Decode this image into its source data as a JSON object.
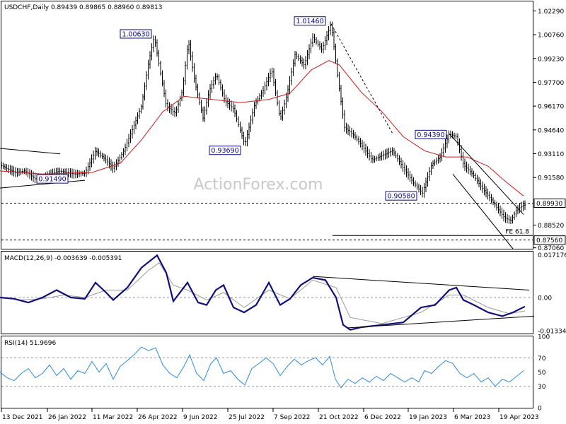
{
  "chart_data": [
    {
      "type": "candlestick",
      "title": "USDCHF,Daily",
      "ohlc_text": "0.89439 0.89865 0.88960 0.89813",
      "watermark": "ActionForex.com",
      "ylim": [
        0.87,
        1.029
      ],
      "y_ticks": [
        "1.02290",
        "1.00760",
        "0.99230",
        "0.97700",
        "0.96170",
        "0.94640",
        "0.93110",
        "0.91580",
        "0.88520",
        "0.87060"
      ],
      "y_tick_values": [
        1.0229,
        1.0076,
        0.9923,
        0.977,
        0.9617,
        0.9464,
        0.9311,
        0.9158,
        0.8852,
        0.8706
      ],
      "x_ticks": [
        "13 Dec 2021",
        "26 Jan 2022",
        "11 Mar 2022",
        "26 Apr 2022",
        "9 Jun 2022",
        "25 Jul 2022",
        "7 Sep 2022",
        "21 Oct 2022",
        "6 Dec 2022",
        "19 Jan 2023",
        "6 Mar 2023",
        "19 Apr 2023"
      ],
      "price_path": [
        [
          0,
          0.924
        ],
        [
          10,
          0.9215
        ],
        [
          22,
          0.919
        ],
        [
          35,
          0.92
        ],
        [
          50,
          0.9149
        ],
        [
          65,
          0.917
        ],
        [
          85,
          0.92
        ],
        [
          105,
          0.918
        ],
        [
          120,
          0.9185
        ],
        [
          135,
          0.933
        ],
        [
          150,
          0.927
        ],
        [
          160,
          0.9215
        ],
        [
          175,
          0.933
        ],
        [
          190,
          0.95
        ],
        [
          200,
          0.962
        ],
        [
          210,
          0.99
        ],
        [
          218,
          1.0063
        ],
        [
          225,
          0.988
        ],
        [
          235,
          0.962
        ],
        [
          248,
          0.957
        ],
        [
          258,
          0.972
        ],
        [
          266,
          1.004
        ],
        [
          275,
          0.978
        ],
        [
          287,
          0.954
        ],
        [
          296,
          0.972
        ],
        [
          306,
          0.982
        ],
        [
          318,
          0.965
        ],
        [
          330,
          0.96
        ],
        [
          346,
          0.9369
        ],
        [
          360,
          0.963
        ],
        [
          372,
          0.972
        ],
        [
          384,
          0.985
        ],
        [
          396,
          0.953
        ],
        [
          406,
          0.97
        ],
        [
          417,
          0.995
        ],
        [
          430,
          0.988
        ],
        [
          442,
          1.006
        ],
        [
          455,
          0.998
        ],
        [
          468,
          1.0146
        ],
        [
          478,
          0.978
        ],
        [
          487,
          0.948
        ],
        [
          500,
          0.943
        ],
        [
          512,
          0.936
        ],
        [
          526,
          0.927
        ],
        [
          540,
          0.93
        ],
        [
          555,
          0.933
        ],
        [
          570,
          0.922
        ],
        [
          585,
          0.912
        ],
        [
          597,
          0.9058
        ],
        [
          610,
          0.924
        ],
        [
          622,
          0.929
        ],
        [
          635,
          0.9439
        ],
        [
          645,
          0.942
        ],
        [
          655,
          0.924
        ],
        [
          668,
          0.918
        ],
        [
          680,
          0.91
        ],
        [
          692,
          0.903
        ],
        [
          703,
          0.896
        ],
        [
          713,
          0.89
        ],
        [
          722,
          0.888
        ],
        [
          730,
          0.895
        ],
        [
          740,
          0.8981
        ]
      ],
      "ma_path": [
        [
          0,
          0.92
        ],
        [
          60,
          0.918
        ],
        [
          130,
          0.919
        ],
        [
          170,
          0.925
        ],
        [
          200,
          0.94
        ],
        [
          230,
          0.958
        ],
        [
          260,
          0.968
        ],
        [
          300,
          0.966
        ],
        [
          340,
          0.964
        ],
        [
          380,
          0.966
        ],
        [
          410,
          0.97
        ],
        [
          440,
          0.985
        ],
        [
          465,
          0.991
        ],
        [
          480,
          0.988
        ],
        [
          510,
          0.971
        ],
        [
          540,
          0.958
        ],
        [
          570,
          0.942
        ],
        [
          600,
          0.933
        ],
        [
          630,
          0.929
        ],
        [
          660,
          0.929
        ],
        [
          690,
          0.923
        ],
        [
          715,
          0.913
        ],
        [
          740,
          0.904
        ]
      ],
      "price_line": 0.8993,
      "price_line_label": "0.89930",
      "support_line": 0.8756,
      "support_line_label": "0.87560",
      "fe_label": "FE 61.8",
      "annotations": [
        {
          "label": "1.00630",
          "x": 218,
          "value": 1.0063
        },
        {
          "label": "1.01460",
          "x": 468,
          "value": 1.0146
        },
        {
          "label": "0.93690",
          "x": 346,
          "value": 0.9369
        },
        {
          "label": "0.94390",
          "x": 635,
          "value": 0.9439
        },
        {
          "label": "0.90580",
          "x": 597,
          "value": 0.9058
        },
        {
          "label": "0.91490",
          "x": 50,
          "value": 0.9149
        }
      ],
      "trend_lines": [
        {
          "from": [
            0,
            0.9345
          ],
          "to": [
            85,
            0.931
          ],
          "style": "solid"
        },
        {
          "from": [
            0,
            0.909
          ],
          "to": [
            120,
            0.914
          ],
          "style": "solid"
        },
        {
          "from": [
            468,
            1.0146
          ],
          "to": [
            555,
            0.944
          ],
          "style": "dashed"
        },
        {
          "from": [
            635,
            0.9439
          ],
          "to": [
            740,
            0.892
          ],
          "style": "solid"
        },
        {
          "from": [
            640,
            0.918
          ],
          "to": [
            725,
            0.87
          ],
          "style": "solid"
        }
      ]
    },
    {
      "type": "line",
      "title": "MACD(12,26,9)",
      "values_text": "-0.003639 -0.005391",
      "ylim": [
        -0.0145,
        0.0185
      ],
      "y_ticks": [
        "0.017176",
        "0.00",
        "-0.01334"
      ],
      "y_tick_values": [
        0.017176,
        0.0,
        -0.01334
      ],
      "macd_path": [
        [
          0,
          0.0
        ],
        [
          20,
          -0.0005
        ],
        [
          40,
          -0.002
        ],
        [
          60,
          0.0
        ],
        [
          80,
          0.003
        ],
        [
          100,
          0.0
        ],
        [
          120,
          -0.0005
        ],
        [
          135,
          0.006
        ],
        [
          150,
          0.002
        ],
        [
          160,
          -0.001
        ],
        [
          180,
          0.004
        ],
        [
          200,
          0.012
        ],
        [
          222,
          0.017
        ],
        [
          235,
          0.01
        ],
        [
          245,
          -0.0015
        ],
        [
          265,
          0.006
        ],
        [
          280,
          -0.002
        ],
        [
          292,
          -0.003
        ],
        [
          305,
          0.003
        ],
        [
          316,
          0.005
        ],
        [
          330,
          -0.004
        ],
        [
          345,
          -0.006
        ],
        [
          362,
          -0.003
        ],
        [
          380,
          0.006
        ],
        [
          396,
          -0.003
        ],
        [
          410,
          -0.0005
        ],
        [
          425,
          0.005
        ],
        [
          442,
          0.008
        ],
        [
          460,
          0.007
        ],
        [
          475,
          0.0
        ],
        [
          485,
          -0.011
        ],
        [
          495,
          -0.013
        ],
        [
          510,
          -0.012
        ],
        [
          540,
          -0.011
        ],
        [
          570,
          -0.01
        ],
        [
          595,
          -0.004
        ],
        [
          615,
          -0.003
        ],
        [
          635,
          0.003
        ],
        [
          645,
          0.004
        ],
        [
          655,
          -0.001
        ],
        [
          670,
          -0.003
        ],
        [
          690,
          -0.006
        ],
        [
          710,
          -0.0075
        ],
        [
          725,
          -0.006
        ],
        [
          742,
          -0.0036
        ]
      ],
      "signal_path": [
        [
          0,
          0.0
        ],
        [
          30,
          -0.001
        ],
        [
          60,
          -0.0005
        ],
        [
          90,
          0.001
        ],
        [
          120,
          0.0
        ],
        [
          150,
          0.003
        ],
        [
          180,
          0.003
        ],
        [
          210,
          0.011
        ],
        [
          225,
          0.014
        ],
        [
          245,
          0.005
        ],
        [
          265,
          0.003
        ],
        [
          292,
          -0.001
        ],
        [
          316,
          0.002
        ],
        [
          345,
          -0.004
        ],
        [
          380,
          0.003
        ],
        [
          410,
          -0.0005
        ],
        [
          442,
          0.007
        ],
        [
          475,
          0.004
        ],
        [
          495,
          -0.008
        ],
        [
          540,
          -0.0105
        ],
        [
          595,
          -0.006
        ],
        [
          635,
          0.001
        ],
        [
          655,
          0.001
        ],
        [
          690,
          -0.004
        ],
        [
          720,
          -0.0065
        ],
        [
          742,
          -0.0054
        ]
      ],
      "trend_lines": [
        {
          "from": [
            442,
            0.0085
          ],
          "to": [
            748,
            0.003
          ]
        },
        {
          "from": [
            492,
            -0.0122
          ],
          "to": [
            755,
            -0.0075
          ]
        }
      ]
    },
    {
      "type": "line",
      "title": "RSI(14)",
      "values_text": "51.9696",
      "ylim": [
        0,
        100
      ],
      "y_ticks": [
        "100",
        "70",
        "50",
        "30",
        "0"
      ],
      "y_tick_values": [
        100,
        70,
        50,
        30,
        0
      ],
      "levels": [
        70,
        30
      ],
      "rsi_path": [
        [
          0,
          50
        ],
        [
          10,
          42
        ],
        [
          20,
          38
        ],
        [
          30,
          48
        ],
        [
          40,
          55
        ],
        [
          50,
          42
        ],
        [
          60,
          48
        ],
        [
          70,
          60
        ],
        [
          80,
          45
        ],
        [
          90,
          55
        ],
        [
          100,
          40
        ],
        [
          110,
          52
        ],
        [
          120,
          48
        ],
        [
          130,
          65
        ],
        [
          140,
          50
        ],
        [
          150,
          62
        ],
        [
          160,
          40
        ],
        [
          170,
          58
        ],
        [
          180,
          66
        ],
        [
          190,
          75
        ],
        [
          200,
          85
        ],
        [
          210,
          80
        ],
        [
          220,
          84
        ],
        [
          230,
          60
        ],
        [
          240,
          48
        ],
        [
          250,
          42
        ],
        [
          260,
          58
        ],
        [
          268,
          74
        ],
        [
          278,
          48
        ],
        [
          288,
          38
        ],
        [
          298,
          62
        ],
        [
          306,
          70
        ],
        [
          316,
          48
        ],
        [
          326,
          52
        ],
        [
          336,
          40
        ],
        [
          346,
          32
        ],
        [
          356,
          55
        ],
        [
          366,
          62
        ],
        [
          376,
          70
        ],
        [
          386,
          62
        ],
        [
          396,
          45
        ],
        [
          406,
          58
        ],
        [
          416,
          68
        ],
        [
          426,
          60
        ],
        [
          436,
          66
        ],
        [
          446,
          70
        ],
        [
          456,
          60
        ],
        [
          466,
          72
        ],
        [
          474,
          40
        ],
        [
          482,
          28
        ],
        [
          492,
          40
        ],
        [
          502,
          34
        ],
        [
          512,
          42
        ],
        [
          522,
          36
        ],
        [
          532,
          44
        ],
        [
          542,
          38
        ],
        [
          552,
          48
        ],
        [
          562,
          42
        ],
        [
          572,
          36
        ],
        [
          582,
          42
        ],
        [
          592,
          36
        ],
        [
          600,
          52
        ],
        [
          610,
          48
        ],
        [
          620,
          58
        ],
        [
          630,
          66
        ],
        [
          640,
          62
        ],
        [
          650,
          48
        ],
        [
          660,
          42
        ],
        [
          670,
          48
        ],
        [
          680,
          36
        ],
        [
          690,
          42
        ],
        [
          700,
          30
        ],
        [
          710,
          40
        ],
        [
          720,
          36
        ],
        [
          730,
          44
        ],
        [
          740,
          52
        ]
      ]
    }
  ]
}
